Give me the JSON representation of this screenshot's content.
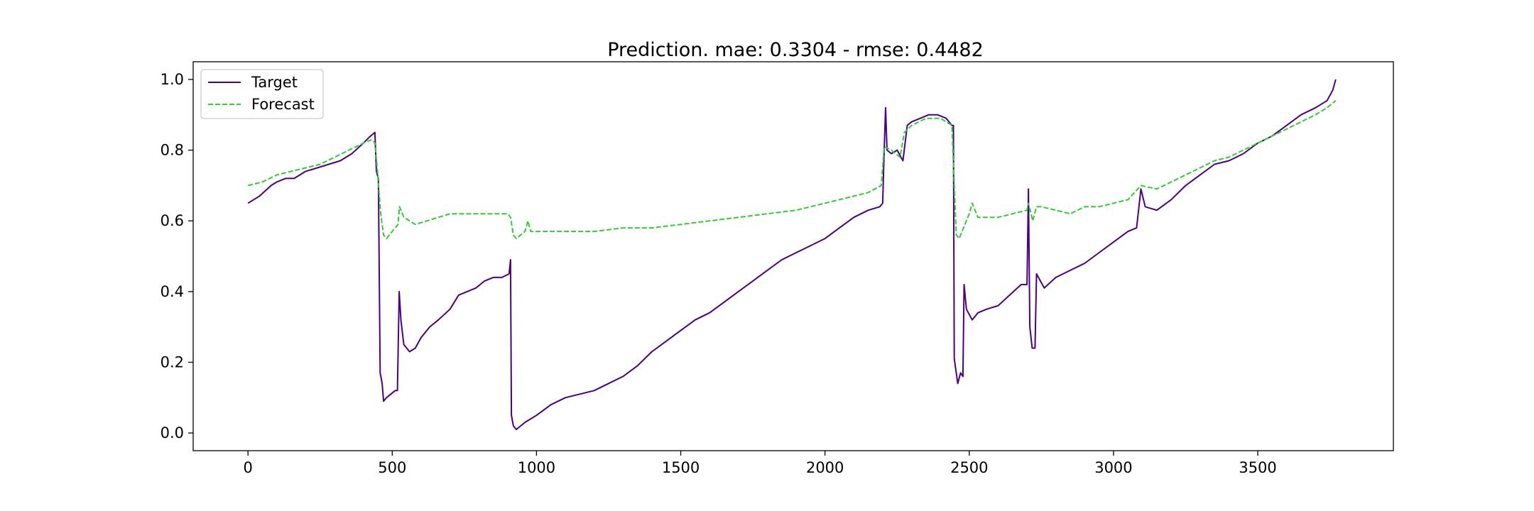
{
  "chart_data": {
    "type": "line",
    "title": "Prediction. mae: 0.3304 - rmse: 0.4482",
    "xlabel": "",
    "ylabel": "",
    "xlim": [
      -190,
      3970
    ],
    "ylim": [
      -0.05,
      1.05
    ],
    "grid": false,
    "legend_position": "top-left",
    "x_ticks": [
      0,
      500,
      1000,
      1500,
      2000,
      2500,
      3000,
      3500
    ],
    "y_ticks": [
      0.0,
      0.2,
      0.4,
      0.6,
      0.8,
      1.0
    ],
    "x_tick_labels": [
      "0",
      "500",
      "1000",
      "1500",
      "2000",
      "2500",
      "3000",
      "3500"
    ],
    "y_tick_labels": [
      "0.0",
      "0.2",
      "0.4",
      "0.6",
      "0.8",
      "1.0"
    ],
    "series": [
      {
        "name": "Target",
        "color": "#4b0082",
        "style": "solid",
        "points": [
          [
            0,
            0.65
          ],
          [
            40,
            0.67
          ],
          [
            80,
            0.7
          ],
          [
            100,
            0.71
          ],
          [
            130,
            0.72
          ],
          [
            160,
            0.72
          ],
          [
            200,
            0.74
          ],
          [
            240,
            0.75
          ],
          [
            280,
            0.76
          ],
          [
            320,
            0.77
          ],
          [
            360,
            0.79
          ],
          [
            400,
            0.82
          ],
          [
            425,
            0.84
          ],
          [
            440,
            0.85
          ],
          [
            445,
            0.74
          ],
          [
            452,
            0.72
          ],
          [
            458,
            0.17
          ],
          [
            465,
            0.14
          ],
          [
            470,
            0.09
          ],
          [
            480,
            0.1
          ],
          [
            495,
            0.11
          ],
          [
            510,
            0.12
          ],
          [
            518,
            0.12
          ],
          [
            524,
            0.4
          ],
          [
            530,
            0.32
          ],
          [
            540,
            0.25
          ],
          [
            560,
            0.23
          ],
          [
            580,
            0.24
          ],
          [
            600,
            0.27
          ],
          [
            630,
            0.3
          ],
          [
            660,
            0.32
          ],
          [
            700,
            0.35
          ],
          [
            730,
            0.39
          ],
          [
            760,
            0.4
          ],
          [
            790,
            0.41
          ],
          [
            820,
            0.43
          ],
          [
            850,
            0.44
          ],
          [
            880,
            0.44
          ],
          [
            905,
            0.45
          ],
          [
            910,
            0.49
          ],
          [
            913,
            0.05
          ],
          [
            920,
            0.02
          ],
          [
            930,
            0.01
          ],
          [
            960,
            0.03
          ],
          [
            1000,
            0.05
          ],
          [
            1050,
            0.08
          ],
          [
            1100,
            0.1
          ],
          [
            1150,
            0.11
          ],
          [
            1200,
            0.12
          ],
          [
            1250,
            0.14
          ],
          [
            1300,
            0.16
          ],
          [
            1350,
            0.19
          ],
          [
            1400,
            0.23
          ],
          [
            1450,
            0.26
          ],
          [
            1500,
            0.29
          ],
          [
            1550,
            0.32
          ],
          [
            1600,
            0.34
          ],
          [
            1650,
            0.37
          ],
          [
            1700,
            0.4
          ],
          [
            1750,
            0.43
          ],
          [
            1800,
            0.46
          ],
          [
            1850,
            0.49
          ],
          [
            1900,
            0.51
          ],
          [
            1950,
            0.53
          ],
          [
            2000,
            0.55
          ],
          [
            2050,
            0.58
          ],
          [
            2100,
            0.61
          ],
          [
            2150,
            0.63
          ],
          [
            2190,
            0.64
          ],
          [
            2200,
            0.65
          ],
          [
            2205,
            0.8
          ],
          [
            2210,
            0.92
          ],
          [
            2215,
            0.8
          ],
          [
            2230,
            0.79
          ],
          [
            2250,
            0.8
          ],
          [
            2270,
            0.77
          ],
          [
            2285,
            0.87
          ],
          [
            2300,
            0.88
          ],
          [
            2330,
            0.89
          ],
          [
            2360,
            0.9
          ],
          [
            2390,
            0.9
          ],
          [
            2420,
            0.89
          ],
          [
            2440,
            0.87
          ],
          [
            2445,
            0.87
          ],
          [
            2448,
            0.21
          ],
          [
            2455,
            0.17
          ],
          [
            2460,
            0.14
          ],
          [
            2470,
            0.17
          ],
          [
            2478,
            0.16
          ],
          [
            2482,
            0.42
          ],
          [
            2490,
            0.35
          ],
          [
            2510,
            0.32
          ],
          [
            2530,
            0.34
          ],
          [
            2560,
            0.35
          ],
          [
            2600,
            0.36
          ],
          [
            2640,
            0.39
          ],
          [
            2680,
            0.42
          ],
          [
            2700,
            0.42
          ],
          [
            2705,
            0.69
          ],
          [
            2710,
            0.3
          ],
          [
            2718,
            0.24
          ],
          [
            2728,
            0.24
          ],
          [
            2733,
            0.45
          ],
          [
            2760,
            0.41
          ],
          [
            2800,
            0.44
          ],
          [
            2850,
            0.46
          ],
          [
            2900,
            0.48
          ],
          [
            2950,
            0.51
          ],
          [
            3000,
            0.54
          ],
          [
            3050,
            0.57
          ],
          [
            3080,
            0.58
          ],
          [
            3095,
            0.69
          ],
          [
            3110,
            0.64
          ],
          [
            3150,
            0.63
          ],
          [
            3200,
            0.66
          ],
          [
            3250,
            0.7
          ],
          [
            3300,
            0.73
          ],
          [
            3350,
            0.76
          ],
          [
            3400,
            0.77
          ],
          [
            3450,
            0.79
          ],
          [
            3500,
            0.82
          ],
          [
            3550,
            0.84
          ],
          [
            3600,
            0.87
          ],
          [
            3650,
            0.9
          ],
          [
            3700,
            0.92
          ],
          [
            3740,
            0.94
          ],
          [
            3760,
            0.97
          ],
          [
            3770,
            1.0
          ]
        ]
      },
      {
        "name": "Forecast",
        "color": "#32cd32",
        "style": "dashed",
        "points": [
          [
            0,
            0.7
          ],
          [
            50,
            0.71
          ],
          [
            100,
            0.73
          ],
          [
            150,
            0.74
          ],
          [
            200,
            0.75
          ],
          [
            250,
            0.76
          ],
          [
            300,
            0.78
          ],
          [
            350,
            0.8
          ],
          [
            400,
            0.82
          ],
          [
            430,
            0.83
          ],
          [
            440,
            0.82
          ],
          [
            450,
            0.73
          ],
          [
            460,
            0.62
          ],
          [
            470,
            0.56
          ],
          [
            480,
            0.55
          ],
          [
            500,
            0.57
          ],
          [
            520,
            0.59
          ],
          [
            525,
            0.64
          ],
          [
            540,
            0.61
          ],
          [
            580,
            0.59
          ],
          [
            620,
            0.6
          ],
          [
            700,
            0.62
          ],
          [
            780,
            0.62
          ],
          [
            850,
            0.62
          ],
          [
            900,
            0.62
          ],
          [
            910,
            0.61
          ],
          [
            920,
            0.56
          ],
          [
            930,
            0.55
          ],
          [
            960,
            0.57
          ],
          [
            970,
            0.6
          ],
          [
            980,
            0.57
          ],
          [
            1100,
            0.57
          ],
          [
            1200,
            0.57
          ],
          [
            1300,
            0.58
          ],
          [
            1400,
            0.58
          ],
          [
            1500,
            0.59
          ],
          [
            1600,
            0.6
          ],
          [
            1700,
            0.61
          ],
          [
            1800,
            0.62
          ],
          [
            1900,
            0.63
          ],
          [
            2000,
            0.65
          ],
          [
            2100,
            0.67
          ],
          [
            2150,
            0.68
          ],
          [
            2195,
            0.7
          ],
          [
            2205,
            0.81
          ],
          [
            2230,
            0.8
          ],
          [
            2260,
            0.78
          ],
          [
            2275,
            0.85
          ],
          [
            2300,
            0.87
          ],
          [
            2350,
            0.89
          ],
          [
            2400,
            0.89
          ],
          [
            2440,
            0.87
          ],
          [
            2448,
            0.7
          ],
          [
            2455,
            0.56
          ],
          [
            2465,
            0.55
          ],
          [
            2480,
            0.58
          ],
          [
            2500,
            0.62
          ],
          [
            2510,
            0.65
          ],
          [
            2530,
            0.61
          ],
          [
            2600,
            0.61
          ],
          [
            2650,
            0.62
          ],
          [
            2700,
            0.63
          ],
          [
            2705,
            0.65
          ],
          [
            2720,
            0.6
          ],
          [
            2733,
            0.64
          ],
          [
            2750,
            0.64
          ],
          [
            2800,
            0.63
          ],
          [
            2850,
            0.62
          ],
          [
            2900,
            0.64
          ],
          [
            2950,
            0.64
          ],
          [
            3000,
            0.65
          ],
          [
            3050,
            0.66
          ],
          [
            3095,
            0.7
          ],
          [
            3150,
            0.69
          ],
          [
            3200,
            0.71
          ],
          [
            3250,
            0.73
          ],
          [
            3300,
            0.75
          ],
          [
            3350,
            0.77
          ],
          [
            3400,
            0.78
          ],
          [
            3450,
            0.8
          ],
          [
            3500,
            0.82
          ],
          [
            3550,
            0.84
          ],
          [
            3600,
            0.86
          ],
          [
            3650,
            0.88
          ],
          [
            3700,
            0.9
          ],
          [
            3740,
            0.92
          ],
          [
            3770,
            0.94
          ]
        ]
      }
    ]
  }
}
